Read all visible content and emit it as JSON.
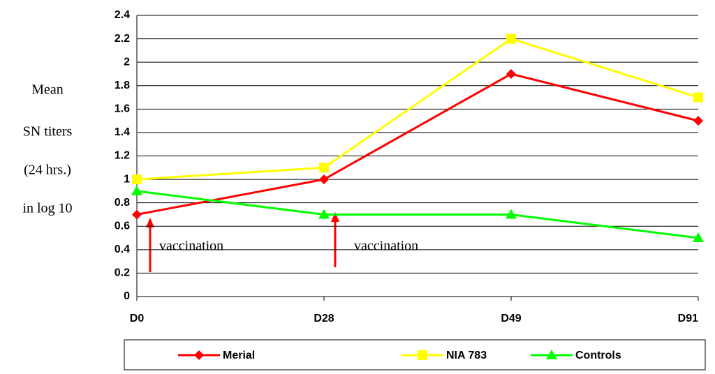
{
  "chart_data": {
    "type": "line",
    "y_label": [
      "Mean",
      "SN titers",
      "(24 hrs.)",
      "in log 10"
    ],
    "categories": [
      "D0",
      "D28",
      "D49",
      "D91"
    ],
    "series": [
      {
        "name": "Merial",
        "color": "#ff0000",
        "marker": "diamond",
        "values": [
          0.7,
          1.0,
          1.9,
          1.5
        ]
      },
      {
        "name": "NIA 783",
        "color": "#ffff00",
        "marker": "square",
        "values": [
          1.0,
          1.1,
          2.2,
          1.7
        ]
      },
      {
        "name": "Controls",
        "color": "#00ff00",
        "marker": "triangle",
        "values": [
          0.9,
          0.7,
          0.7,
          0.5
        ]
      }
    ],
    "annotations": [
      "vaccination",
      "vaccination"
    ],
    "ylim": [
      0,
      2.4
    ],
    "yticks": [
      0,
      0.2,
      0.4,
      0.6,
      0.8,
      1,
      1.2,
      1.4,
      1.6,
      1.8,
      2,
      2.2,
      2.4
    ],
    "grid": true,
    "legend": "bottom"
  }
}
